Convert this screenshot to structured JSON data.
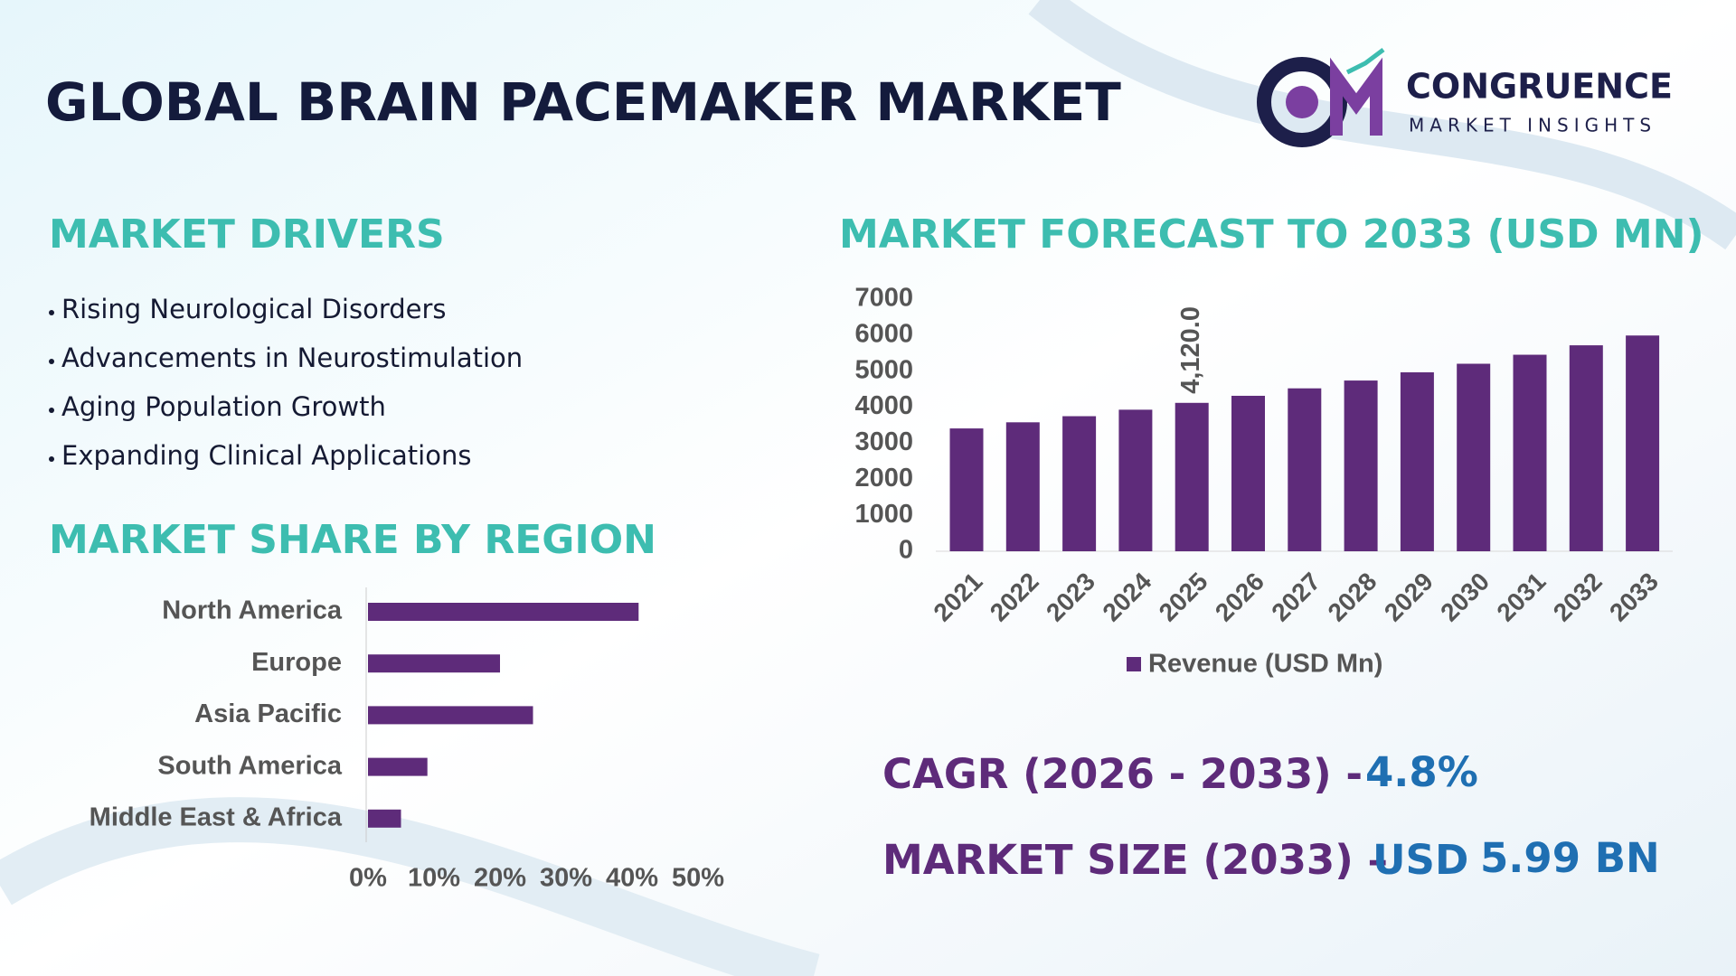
{
  "title": "GLOBAL BRAIN PACEMAKER MARKET",
  "logo": {
    "name": "CONGRUENCE",
    "tagline": "MARKET INSIGHTS"
  },
  "drivers": {
    "heading": "MARKET DRIVERS",
    "items": [
      "Rising Neurological Disorders",
      "Advancements in Neurostimulation",
      "Aging Population Growth",
      "Expanding Clinical Applications"
    ]
  },
  "chart_data": [
    {
      "type": "bar",
      "orientation": "horizontal",
      "title": "MARKET SHARE BY REGION",
      "categories": [
        "North America",
        "Europe",
        "Asia Pacific",
        "South America",
        "Middle East & Africa"
      ],
      "values": [
        41,
        20,
        25,
        9,
        5
      ],
      "color": "#5e2b7a",
      "xlim": [
        0,
        50
      ],
      "xticks": [
        {
          "value": 0,
          "label": "0%"
        },
        {
          "value": 10,
          "label": "10%"
        },
        {
          "value": 20,
          "label": "20%"
        },
        {
          "value": 30,
          "label": "30%"
        },
        {
          "value": 40,
          "label": "40%"
        },
        {
          "value": 50,
          "label": "50%"
        }
      ]
    },
    {
      "type": "bar",
      "orientation": "vertical",
      "title": "MARKET FORECAST TO 2033 (USD MN)",
      "categories": [
        "2021",
        "2022",
        "2023",
        "2024",
        "2025",
        "2026",
        "2027",
        "2028",
        "2029",
        "2030",
        "2031",
        "2032",
        "2033"
      ],
      "series": [
        {
          "name": "Revenue (USD Mn)",
          "color": "#5e2b7a",
          "values": [
            3410,
            3580,
            3750,
            3930,
            4120,
            4316,
            4523,
            4740,
            4968,
            5206,
            5456,
            5718,
            5990
          ],
          "value_labels": [
            null,
            null,
            null,
            null,
            "4,120.0",
            null,
            null,
            null,
            null,
            null,
            null,
            null,
            null
          ]
        }
      ],
      "ylim": [
        0,
        7000
      ],
      "yticks": [
        0,
        1000,
        2000,
        3000,
        4000,
        5000,
        6000,
        7000
      ],
      "legend": "bottom"
    }
  ],
  "stats": {
    "cagr_label": "CAGR (2026 - 2033) -",
    "cagr_value": "4.8%",
    "size_label": "MARKET SIZE (2033) –",
    "size_unit": "USD",
    "size_value": "5.99 BN"
  }
}
